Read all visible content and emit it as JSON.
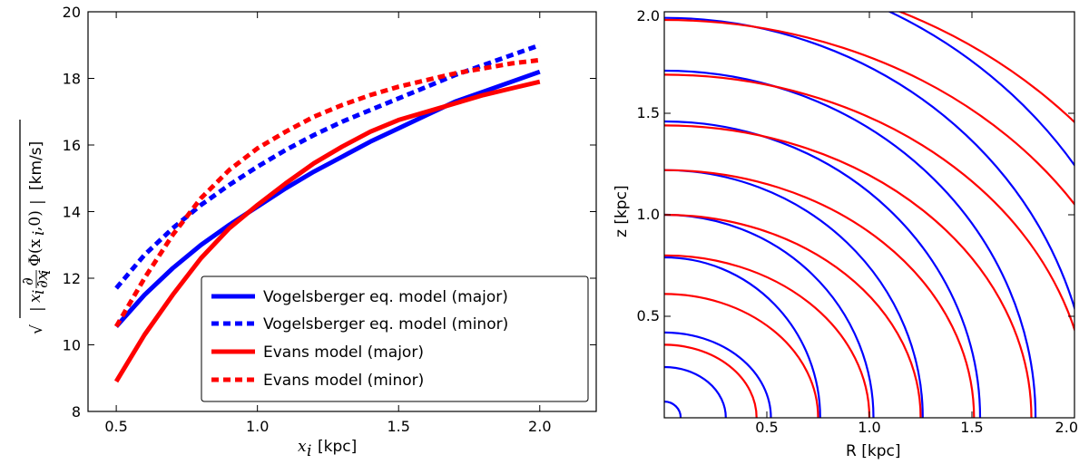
{
  "chart_data": [
    {
      "type": "line",
      "ylabel": "√| xᵢ ∂Φ(xᵢ,0)/∂xᵢ | [km/s]",
      "ylabel_unit": "[km/s]",
      "xlabel_var": "x",
      "xlabel_sub": "i",
      "xlabel_unit": "[kpc]",
      "xlim": [
        0.4,
        2.2
      ],
      "ylim": [
        8,
        20
      ],
      "xticks": [
        "0.5",
        "1.0",
        "1.5",
        "2.0"
      ],
      "yticks": [
        "8",
        "10",
        "12",
        "14",
        "16",
        "18",
        "20"
      ],
      "legend_position": "lower-right",
      "series": [
        {
          "name": "Vogelsberger eq. model (major)",
          "color": "#0000ff",
          "style": "solid",
          "x": [
            0.5,
            0.6,
            0.7,
            0.8,
            0.9,
            1.0,
            1.1,
            1.2,
            1.3,
            1.4,
            1.5,
            1.6,
            1.7,
            1.8,
            1.9,
            2.0
          ],
          "y": [
            10.55,
            11.5,
            12.3,
            13.0,
            13.6,
            14.15,
            14.7,
            15.2,
            15.65,
            16.1,
            16.5,
            16.9,
            17.3,
            17.6,
            17.9,
            18.2
          ]
        },
        {
          "name": "Vogelsberger eq. model (minor)",
          "color": "#0000ff",
          "style": "dashed",
          "x": [
            0.5,
            0.6,
            0.7,
            0.8,
            0.9,
            1.0,
            1.1,
            1.2,
            1.3,
            1.4,
            1.5,
            1.6,
            1.7,
            1.8,
            1.9,
            2.0
          ],
          "y": [
            11.7,
            12.7,
            13.5,
            14.2,
            14.8,
            15.35,
            15.85,
            16.3,
            16.7,
            17.05,
            17.4,
            17.75,
            18.1,
            18.4,
            18.7,
            19.0
          ]
        },
        {
          "name": "Evans model (major)",
          "color": "#ff0000",
          "style": "solid",
          "x": [
            0.5,
            0.6,
            0.7,
            0.8,
            0.9,
            1.0,
            1.1,
            1.2,
            1.3,
            1.4,
            1.5,
            1.6,
            1.7,
            1.8,
            1.9,
            2.0
          ],
          "y": [
            8.9,
            10.3,
            11.5,
            12.6,
            13.5,
            14.2,
            14.85,
            15.45,
            15.95,
            16.4,
            16.75,
            17.0,
            17.25,
            17.5,
            17.7,
            17.9
          ]
        },
        {
          "name": "Evans model (minor)",
          "color": "#ff0000",
          "style": "dashed",
          "x": [
            0.5,
            0.6,
            0.7,
            0.8,
            0.9,
            1.0,
            1.1,
            1.2,
            1.3,
            1.4,
            1.5,
            1.6,
            1.7,
            1.8,
            1.9,
            2.0
          ],
          "y": [
            10.55,
            12.0,
            13.3,
            14.4,
            15.25,
            15.9,
            16.4,
            16.85,
            17.2,
            17.5,
            17.75,
            17.95,
            18.15,
            18.3,
            18.45,
            18.55
          ]
        }
      ]
    },
    {
      "type": "line",
      "subtype": "contour",
      "xlabel": "R [kpc]",
      "ylabel": "z [kpc]",
      "xlim": [
        0,
        2.0
      ],
      "ylim": [
        0,
        2.0
      ],
      "xticks": [
        "0.5",
        "1.0",
        "1.5",
        "2.0"
      ],
      "yticks": [
        "0.5",
        "1.0",
        "1.5",
        "2.0"
      ],
      "series": [
        {
          "name": "",
          "color": "#0000ff",
          "contours": [
            {
              "a": 0.08,
              "b": 0.08
            },
            {
              "a": 0.3,
              "b": 0.25
            },
            {
              "a": 0.52,
              "b": 0.42
            },
            {
              "a": 0.76,
              "b": 0.79
            },
            {
              "a": 1.02,
              "b": 1.0
            },
            {
              "a": 1.26,
              "b": 1.22
            },
            {
              "a": 1.54,
              "b": 1.46
            },
            {
              "a": 1.81,
              "b": 1.71
            },
            {
              "a": 2.08,
              "b": 1.97
            },
            {
              "a": 2.4,
              "b": 2.25
            }
          ]
        },
        {
          "name": "",
          "color": "#ff0000",
          "contours": [
            {
              "a": 0.45,
              "b": 0.36
            },
            {
              "a": 0.75,
              "b": 0.61
            },
            {
              "a": 1.0,
              "b": 0.8
            },
            {
              "a": 1.25,
              "b": 1.0
            },
            {
              "a": 1.51,
              "b": 1.22
            },
            {
              "a": 1.79,
              "b": 1.44
            },
            {
              "a": 2.07,
              "b": 1.69
            },
            {
              "a": 2.37,
              "b": 1.96
            },
            {
              "a": 2.65,
              "b": 2.22
            }
          ]
        }
      ]
    }
  ]
}
